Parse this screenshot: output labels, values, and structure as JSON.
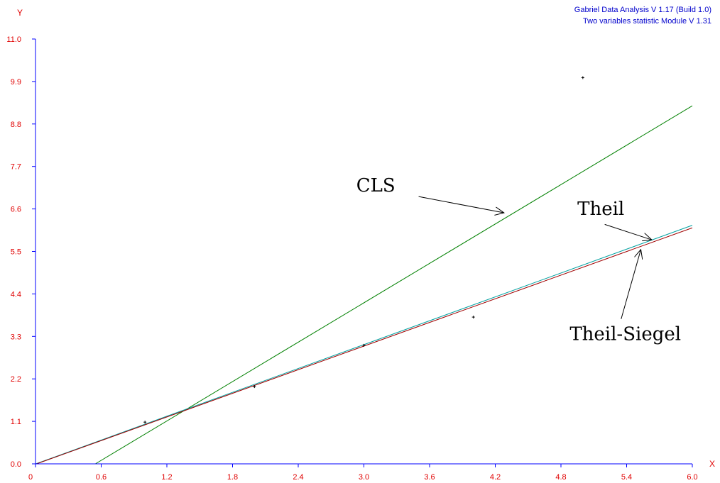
{
  "app_info": {
    "line1": "Gabriel Data Analysis V 1.17 (Build 1.0)",
    "line2": "Two variables statistic Module V 1.31"
  },
  "chart_data": {
    "type": "scatter",
    "xlabel": "X",
    "ylabel": "Y",
    "xlim": [
      0,
      6.0
    ],
    "ylim": [
      0,
      11.0
    ],
    "x_ticks": [
      "0",
      "0.6",
      "1.2",
      "1.8",
      "2.4",
      "3.0",
      "3.6",
      "4.2",
      "4.8",
      "5.4",
      "6.0"
    ],
    "y_ticks": [
      "0.0",
      "1.1",
      "2.2",
      "3.3",
      "4.4",
      "5.5",
      "6.6",
      "7.7",
      "8.8",
      "9.9",
      "11.0"
    ],
    "points": [
      {
        "x": 1,
        "y": 1.08
      },
      {
        "x": 2,
        "y": 2.0
      },
      {
        "x": 3,
        "y": 3.07
      },
      {
        "x": 4,
        "y": 3.8
      },
      {
        "x": 5,
        "y": 10.0
      }
    ],
    "lines": [
      {
        "slope": 1.7,
        "intercept": -0.93,
        "color": "#008000"
      },
      {
        "slope": 1.03,
        "intercept": -0.003,
        "color": "#00a0a0"
      },
      {
        "slope": 1.02,
        "intercept": -0.01,
        "color": "#a00000"
      }
    ],
    "annotations": [
      {
        "text": "CLS",
        "at": [
          2.93,
          7.05
        ],
        "arrow_from": [
          3.5,
          6.92
        ],
        "arrow_to": [
          4.28,
          6.5
        ]
      },
      {
        "text": "Theil",
        "at": [
          4.95,
          6.45
        ],
        "arrow_from": [
          5.2,
          6.2
        ],
        "arrow_to": [
          5.63,
          5.8
        ]
      },
      {
        "text": "Theil-Siegel",
        "at": [
          4.88,
          3.2
        ],
        "arrow_from": [
          5.35,
          3.75
        ],
        "arrow_to": [
          5.53,
          5.55
        ]
      }
    ]
  }
}
